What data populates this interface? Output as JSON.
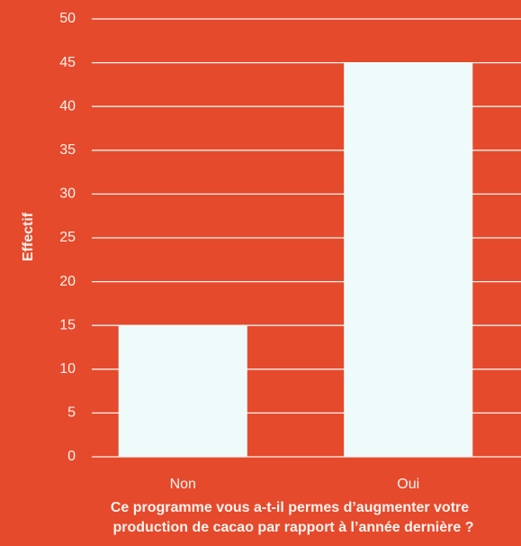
{
  "chart_data": {
    "type": "bar",
    "ylabel": "Effectif",
    "xlabel": [
      "Ce programme vous a-t-il permes d’augmenter votre",
      "production de cacao par rapport à l’année dernière ?"
    ],
    "categories": [
      "Non",
      "Oui"
    ],
    "values": [
      15,
      45
    ],
    "color": "#effbfb",
    "ylim": [
      0,
      50
    ],
    "yticks": [
      0,
      5,
      10,
      15,
      20,
      25,
      30,
      35,
      40,
      45,
      50
    ],
    "grid": true
  }
}
